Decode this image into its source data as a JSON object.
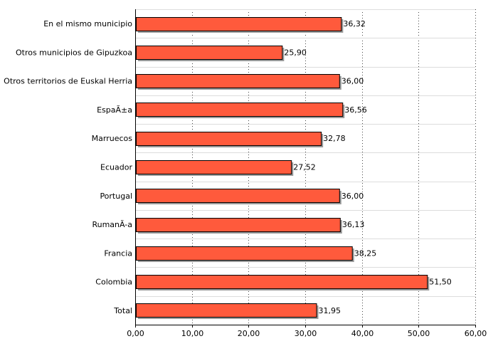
{
  "chart_data": {
    "type": "bar",
    "orientation": "horizontal",
    "categories": [
      "En el mismo municipio",
      "Otros municipios de Gipuzkoa",
      "Otros territorios de Euskal Herria",
      "EspaÃ±a",
      "Marruecos",
      "Ecuador",
      "Portugal",
      "RumanÃ-a",
      "Francia",
      "Colombia",
      "Total"
    ],
    "values": [
      36.32,
      25.9,
      36.0,
      36.56,
      32.78,
      27.52,
      36.0,
      36.13,
      38.25,
      51.5,
      31.95
    ],
    "value_labels": [
      "36,32",
      "25,90",
      "36,00",
      "36,56",
      "32,78",
      "27,52",
      "36,00",
      "36,13",
      "38,25",
      "51,50",
      "31,95"
    ],
    "xlim": [
      0,
      60
    ],
    "x_ticks": [
      0,
      10,
      20,
      30,
      40,
      50,
      60
    ],
    "x_tick_labels": [
      "0,00",
      "10,00",
      "20,00",
      "30,00",
      "40,00",
      "50,00",
      "60,00"
    ],
    "title": "",
    "xlabel": "",
    "ylabel": "",
    "grid": true,
    "legend": "none",
    "colors": {
      "bar_fill": "#FF5A3C",
      "bar_stroke": "#000000",
      "bar_shadow": "#9A9A9A",
      "grid": "#444444",
      "row_separator": "#DDDDDD"
    }
  }
}
